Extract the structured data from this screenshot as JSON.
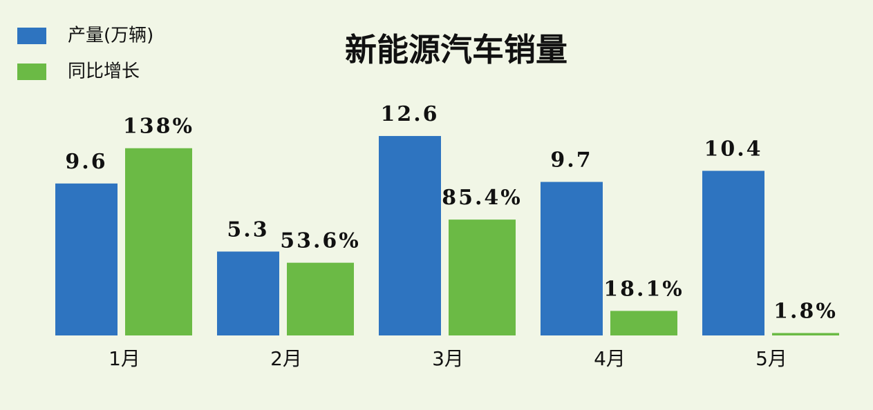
{
  "chart_data": {
    "type": "bar",
    "title": "新能源汽车销量",
    "categories": [
      "1月",
      "2月",
      "3月",
      "4月",
      "5月"
    ],
    "series": [
      {
        "name": "产量(万辆)",
        "color": "#2e74c0",
        "values": [
          9.6,
          5.3,
          12.6,
          9.7,
          10.4
        ]
      },
      {
        "name": "同比增长",
        "color": "#6bba45",
        "axis": "y2",
        "values": [
          138,
          53.6,
          85.4,
          18.1,
          1.8
        ],
        "value_labels": [
          "138%",
          "53.6%",
          "85.4%",
          "18.1%",
          "1.8%"
        ]
      }
    ],
    "ylim": [
      0,
      15
    ],
    "y2lim": [
      0,
      175
    ],
    "legend": "top-left"
  }
}
